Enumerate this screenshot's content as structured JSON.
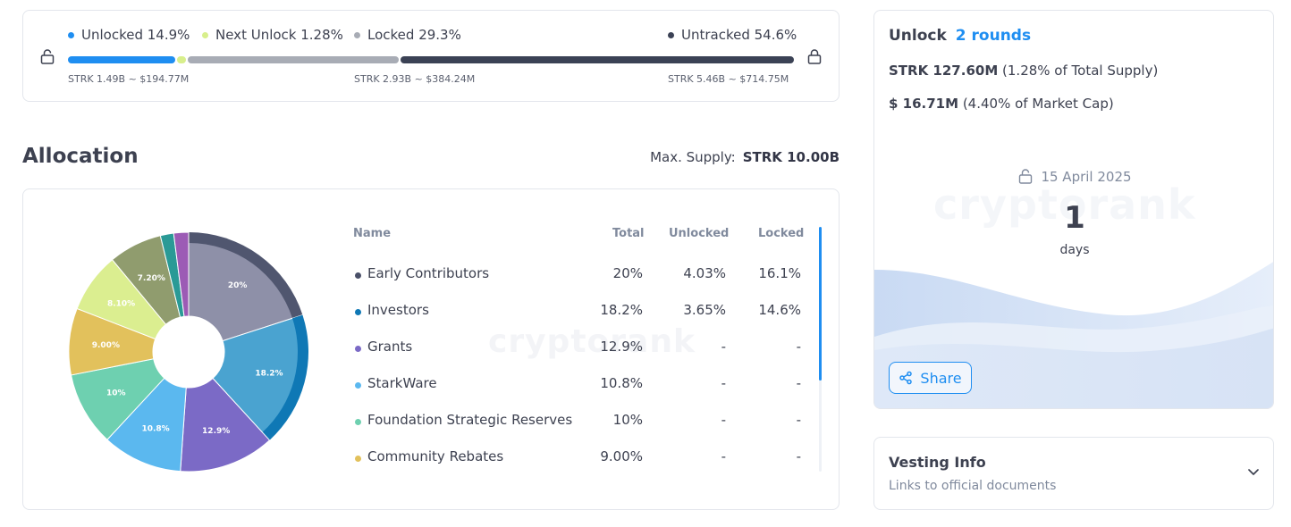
{
  "progress": {
    "legend": [
      {
        "label": "Unlocked 14.9%",
        "color": "#1f8ef1"
      },
      {
        "label": "Next Unlock 1.28%",
        "color": "#d8ef8c"
      },
      {
        "label": "Locked 29.3%",
        "color": "#a8acb5"
      },
      {
        "label": "Untracked 54.6%",
        "color": "#3b4255"
      }
    ],
    "segments": [
      {
        "name": "unlocked",
        "fraction": 0.149,
        "color": "#1f8ef1"
      },
      {
        "name": "next-unlock",
        "fraction": 0.0128,
        "color": "#d8ef8c"
      },
      {
        "name": "locked",
        "fraction": 0.293,
        "color": "#a8acb5"
      },
      {
        "name": "untracked",
        "fraction": 0.546,
        "color": "#3b4255"
      }
    ],
    "amounts": {
      "unlocked": "STRK 1.49B ~ $194.77M",
      "locked": "STRK 2.93B ~ $384.24M",
      "untracked": "STRK 5.46B ~ $714.75M"
    },
    "left_icon": "lock-open-icon",
    "right_icon": "lock-icon"
  },
  "allocation": {
    "title": "Allocation",
    "max_supply_label": "Max. Supply:",
    "max_supply_value": "STRK 10.00B",
    "watermark": "cryptorank",
    "columns": {
      "name": "Name",
      "total": "Total",
      "unlocked": "Unlocked",
      "locked": "Locked"
    },
    "rows": [
      {
        "name": "Early Contributors",
        "total": "20%",
        "unlocked": "4.03%",
        "locked": "16.1%",
        "color": "#4a5068"
      },
      {
        "name": "Investors",
        "total": "18.2%",
        "unlocked": "3.65%",
        "locked": "14.6%",
        "color": "#0f78b5"
      },
      {
        "name": "Grants",
        "total": "12.9%",
        "unlocked": "-",
        "locked": "-",
        "color": "#7b6ac6"
      },
      {
        "name": "StarkWare",
        "total": "10.8%",
        "unlocked": "-",
        "locked": "-",
        "color": "#5bb8ef"
      },
      {
        "name": "Foundation Strategic Reserves",
        "total": "10%",
        "unlocked": "-",
        "locked": "-",
        "color": "#6ed0b0"
      },
      {
        "name": "Community Rebates",
        "total": "9.00%",
        "unlocked": "-",
        "locked": "-",
        "color": "#e2c15c"
      }
    ]
  },
  "chart_data": {
    "type": "pie",
    "title": "",
    "slices": [
      {
        "label": "20%",
        "name": "Early Contributors",
        "value": 20,
        "color": "#8e90a8",
        "unlocked_color": "#50566f"
      },
      {
        "label": "18.2%",
        "name": "Investors",
        "value": 18.2,
        "color": "#4aa3d0",
        "unlocked_color": "#0f78b5"
      },
      {
        "label": "12.9%",
        "name": "Grants",
        "value": 12.9,
        "color": "#7b6ac6"
      },
      {
        "label": "10.8%",
        "name": "StarkWare",
        "value": 10.8,
        "color": "#5bb8ef"
      },
      {
        "label": "10%",
        "name": "Foundation Strategic Reserves",
        "value": 10,
        "color": "#6ed0b0"
      },
      {
        "label": "9.00%",
        "name": "Community Rebates",
        "value": 9.0,
        "color": "#e2c15c"
      },
      {
        "label": "8.10%",
        "name": "",
        "value": 8.1,
        "color": "#dbee90"
      },
      {
        "label": "7.20%",
        "name": "",
        "value": 7.2,
        "color": "#909c6e"
      },
      {
        "label": "",
        "name": "",
        "value": 1.8,
        "color": "#2a9a96"
      },
      {
        "label": "",
        "name": "",
        "value": 2.0,
        "color": "#9c5bb5"
      }
    ],
    "unlocked_share": [
      {
        "name": "Early Contributors",
        "unlocked": 4.03,
        "locked": 16.1
      },
      {
        "name": "Investors",
        "unlocked": 3.65,
        "locked": 14.6
      }
    ]
  },
  "unlock": {
    "label": "Unlock",
    "rounds": "2 rounds",
    "supply_strong": "STRK 127.60M",
    "supply_rest": "(1.28% of Total Supply)",
    "cap_strong": "$ 16.71M",
    "cap_rest": "(4.40% of Market Cap)",
    "date": "15 April 2025",
    "days": "1",
    "days_label": "days",
    "watermark": "cryptorank",
    "share_label": "Share",
    "date_icon": "lock-open-icon",
    "share_icon": "share-icon"
  },
  "vesting": {
    "title": "Vesting Info",
    "subtitle": "Links to official documents",
    "chevron_icon": "chevron-down-icon"
  }
}
